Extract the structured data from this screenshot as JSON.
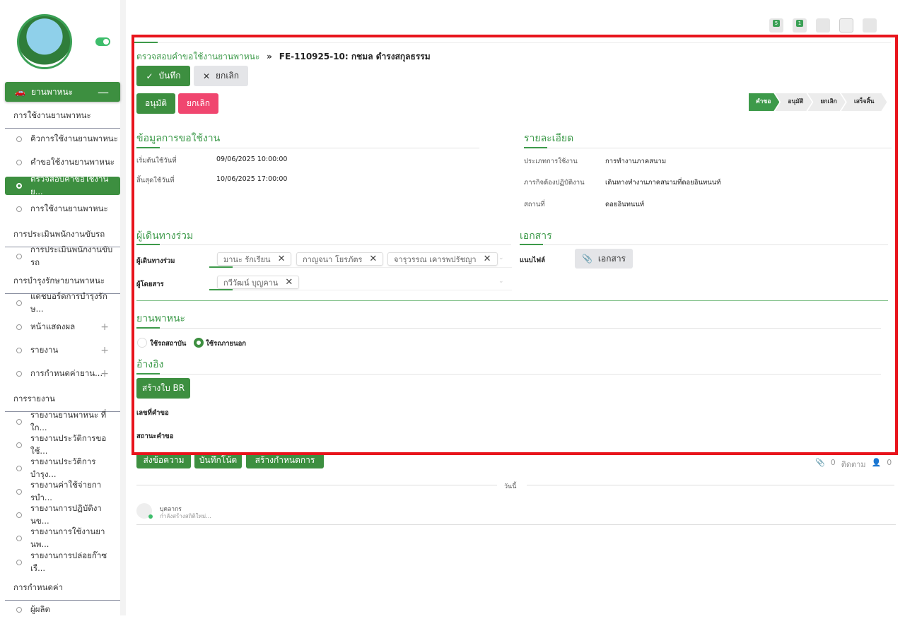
{
  "sidebar": {
    "toggle_on": true,
    "main_menu": "ยานพาหนะ",
    "sections": [
      {
        "title": "การใช้งานยานพาหนะ",
        "items": [
          "คิวการใช้งานยานพาหนะ",
          "คำขอใช้งานยานพาหนะ",
          "ตรวจสอบคำขอใช้งานย...",
          "การใช้งานยานพาหนะ"
        ]
      },
      {
        "title": "การประเมินพนักงานขับรถ",
        "items": [
          "การประเมินพนักงานขับรถ"
        ]
      },
      {
        "title": "การบำรุงรักษายานพาหนะ",
        "items": [
          "แดชบอร์ดการบำรุงรักษ...",
          "หน้าแสดงผล",
          "รายงาน",
          "การกำหนดค่ายาน..."
        ]
      },
      {
        "title": "การรายงาน",
        "items": [
          "รายงานยานพาหนะ ที่ใก...",
          "รายงานประวัติการขอใช้...",
          "รายงานประวัติการบำรุง...",
          "รายงานค่าใช้จ่ายการบำ...",
          "รายงานการปฏิบัติงานข...",
          "รายงานการใช้งานยานพ...",
          "รายงานการปล่อยก๊าซเรื..."
        ]
      },
      {
        "title": "การกำหนดค่า",
        "items": [
          "ผู้ผลิต"
        ]
      }
    ]
  },
  "topbar": {
    "badges": [
      "5",
      "1"
    ]
  },
  "breadcrumb": {
    "parent": "ตรวจสอบคำขอใช้งานยานพาหนะ",
    "current": "FE-110925-10: กชมล ดำรงสกุลธรรม"
  },
  "actions": {
    "save": "บันทึก",
    "discard": "ยกเลิก",
    "approve": "อนุมัติ",
    "cancel": "ยกเลิก"
  },
  "status_steps": [
    {
      "label": "คำขอ",
      "active": true
    },
    {
      "label": "อนุมัติ",
      "active": false
    },
    {
      "label": "ยกเลิก",
      "active": false
    },
    {
      "label": "เสร็จสิ้น",
      "active": false
    }
  ],
  "request_info": {
    "title": "ข้อมูลการขอใช้งาน",
    "start_label": "เริ่มต้นใช้วันที่",
    "start": "09/06/2025 10:00:00",
    "end_label": "สิ้นสุดใช้วันที่",
    "end": "10/06/2025 17:00:00"
  },
  "details": {
    "title": "รายละเอียด",
    "type_label": "ประเภทการใช้งาน",
    "type": "การทำงานภาคสนาม",
    "mission_label": "ภารกิจต้องปฏิบัติงาน",
    "mission": "เดินทางทำงานภาคสนามที่ดอยอินทนนท์",
    "place_label": "สถานที่",
    "place": "ดอยอินทนนท์"
  },
  "companions": {
    "title": "ผู้เดินทางร่วม",
    "companions_label": "ผู้เดินทางร่วม",
    "companions": [
      "มานะ รักเรียน",
      "กาญจนา โยรภัตร",
      "จารุวรรณ เคารพปรัชญา"
    ],
    "passengers_label": "ผู้โดยสาร",
    "passengers": [
      "กวีวัฒน์ บุญคาน"
    ]
  },
  "documents": {
    "title": "เอกสาร",
    "attach_label": "แนบไฟล์",
    "button": "เอกสาร"
  },
  "vehicle": {
    "title": "ยานพาหนะ",
    "options": [
      "ใช้รถสถาบัน",
      "ใช้รถภายนอก"
    ],
    "selected": 1
  },
  "reference": {
    "title": "อ้างอิง",
    "create_br": "สร้างใบ BR",
    "request_no_label": "เลขที่คำขอ",
    "request_status_label": "สถานะคำขอ"
  },
  "chatter": {
    "send_message": "ส่งข้อความ",
    "log_note": "บันทึกโน้ต",
    "schedule": "สร้างกำหนดการ",
    "attachments": "0",
    "follow": "ติดตาม",
    "followers": "0",
    "today": "วันนี้",
    "author": "บุคลากร",
    "message": "กำลังสร้างสถิติใหม่..."
  }
}
